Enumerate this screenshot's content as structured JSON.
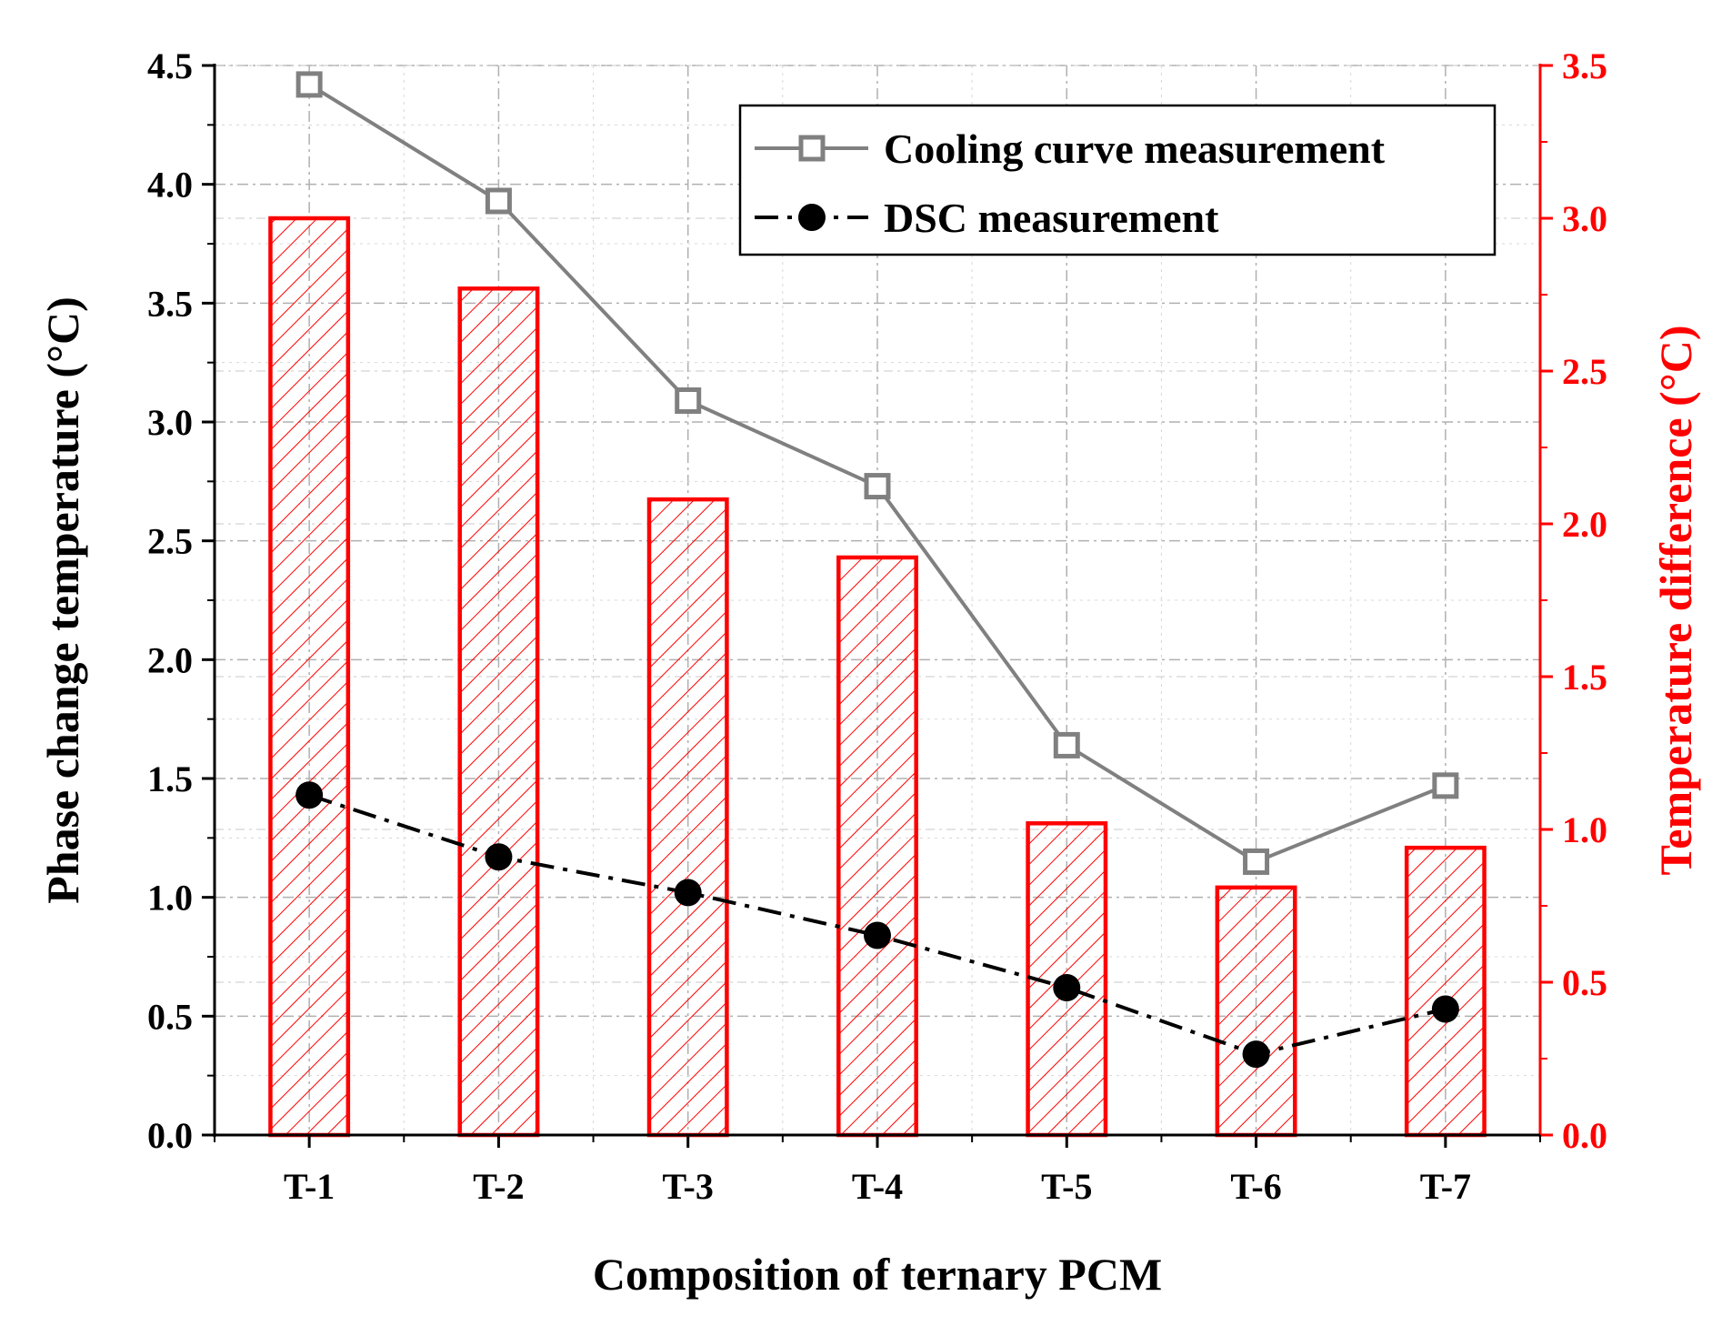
{
  "chart_data": {
    "type": "bar+line",
    "categories": [
      "T-1",
      "T-2",
      "T-3",
      "T-4",
      "T-5",
      "T-6",
      "T-7"
    ],
    "bars": {
      "name": "Temperature difference",
      "axis": "right",
      "values": [
        3.0,
        2.77,
        2.08,
        1.89,
        1.02,
        0.81,
        0.94
      ]
    },
    "series": [
      {
        "name": "Cooling curve measurement",
        "axis": "left",
        "marker": "open-square",
        "line": "solid",
        "values": [
          4.42,
          3.93,
          3.09,
          2.73,
          1.64,
          1.15,
          1.47
        ]
      },
      {
        "name": "DSC measurement",
        "axis": "left",
        "marker": "filled-circle",
        "line": "dash-dot",
        "values": [
          1.43,
          1.17,
          1.02,
          0.84,
          0.62,
          0.34,
          0.53
        ]
      }
    ],
    "xlabel": "Composition of ternary PCM",
    "ylabel": "Phase change temperature (°C)",
    "ylabel_right": "Temperature difference (°C)",
    "ylim": [
      0,
      4.5
    ],
    "ylim_right": [
      0,
      3.5
    ],
    "yticks": [
      "0.0",
      "0.5",
      "1.0",
      "1.5",
      "2.0",
      "2.5",
      "3.0",
      "3.5",
      "4.0",
      "4.5"
    ],
    "yticks_right": [
      "0.0",
      "0.5",
      "1.0",
      "1.5",
      "2.0",
      "2.5",
      "3.0",
      "3.5"
    ],
    "grid": true,
    "legend_position": "top-right",
    "colors": {
      "bars": "#ff0000",
      "cooling": "#808080",
      "dsc": "#000000",
      "right_axis": "#ff0000",
      "grid": "#b0b0b0"
    }
  }
}
